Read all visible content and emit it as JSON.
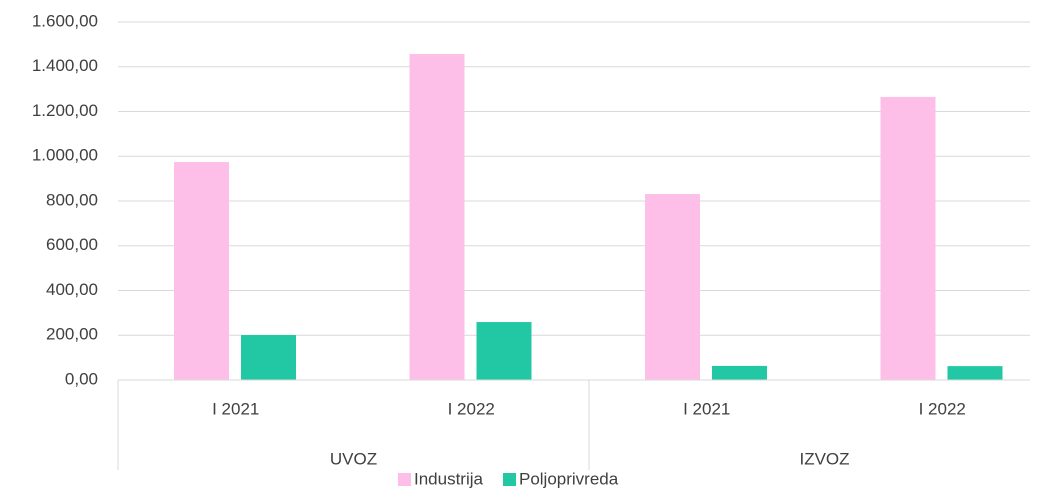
{
  "chart_data": {
    "type": "bar",
    "groups": [
      {
        "name": "UVOZ",
        "categories": [
          "I 2021",
          "I 2022"
        ]
      },
      {
        "name": "IZVOZ",
        "categories": [
          "I 2021",
          "I 2022"
        ]
      }
    ],
    "series": [
      {
        "name": "Industrija",
        "color": "#fdbfe8",
        "values": [
          974,
          1457,
          831,
          1265
        ]
      },
      {
        "name": "Poljoprivreda",
        "color": "#22c7a4",
        "values": [
          201,
          259,
          63,
          62
        ]
      }
    ],
    "ylim": [
      0,
      1600
    ],
    "yticks": [
      {
        "value": 0,
        "label": "0,00"
      },
      {
        "value": 200,
        "label": "200,00"
      },
      {
        "value": 400,
        "label": "400,00"
      },
      {
        "value": 600,
        "label": "600,00"
      },
      {
        "value": 800,
        "label": "800,00"
      },
      {
        "value": 1000,
        "label": "1.000,00"
      },
      {
        "value": 1200,
        "label": "1.200,00"
      },
      {
        "value": 1400,
        "label": "1.400,00"
      },
      {
        "value": 1600,
        "label": "1.600,00"
      }
    ],
    "grid": true,
    "legend": "bottom"
  }
}
